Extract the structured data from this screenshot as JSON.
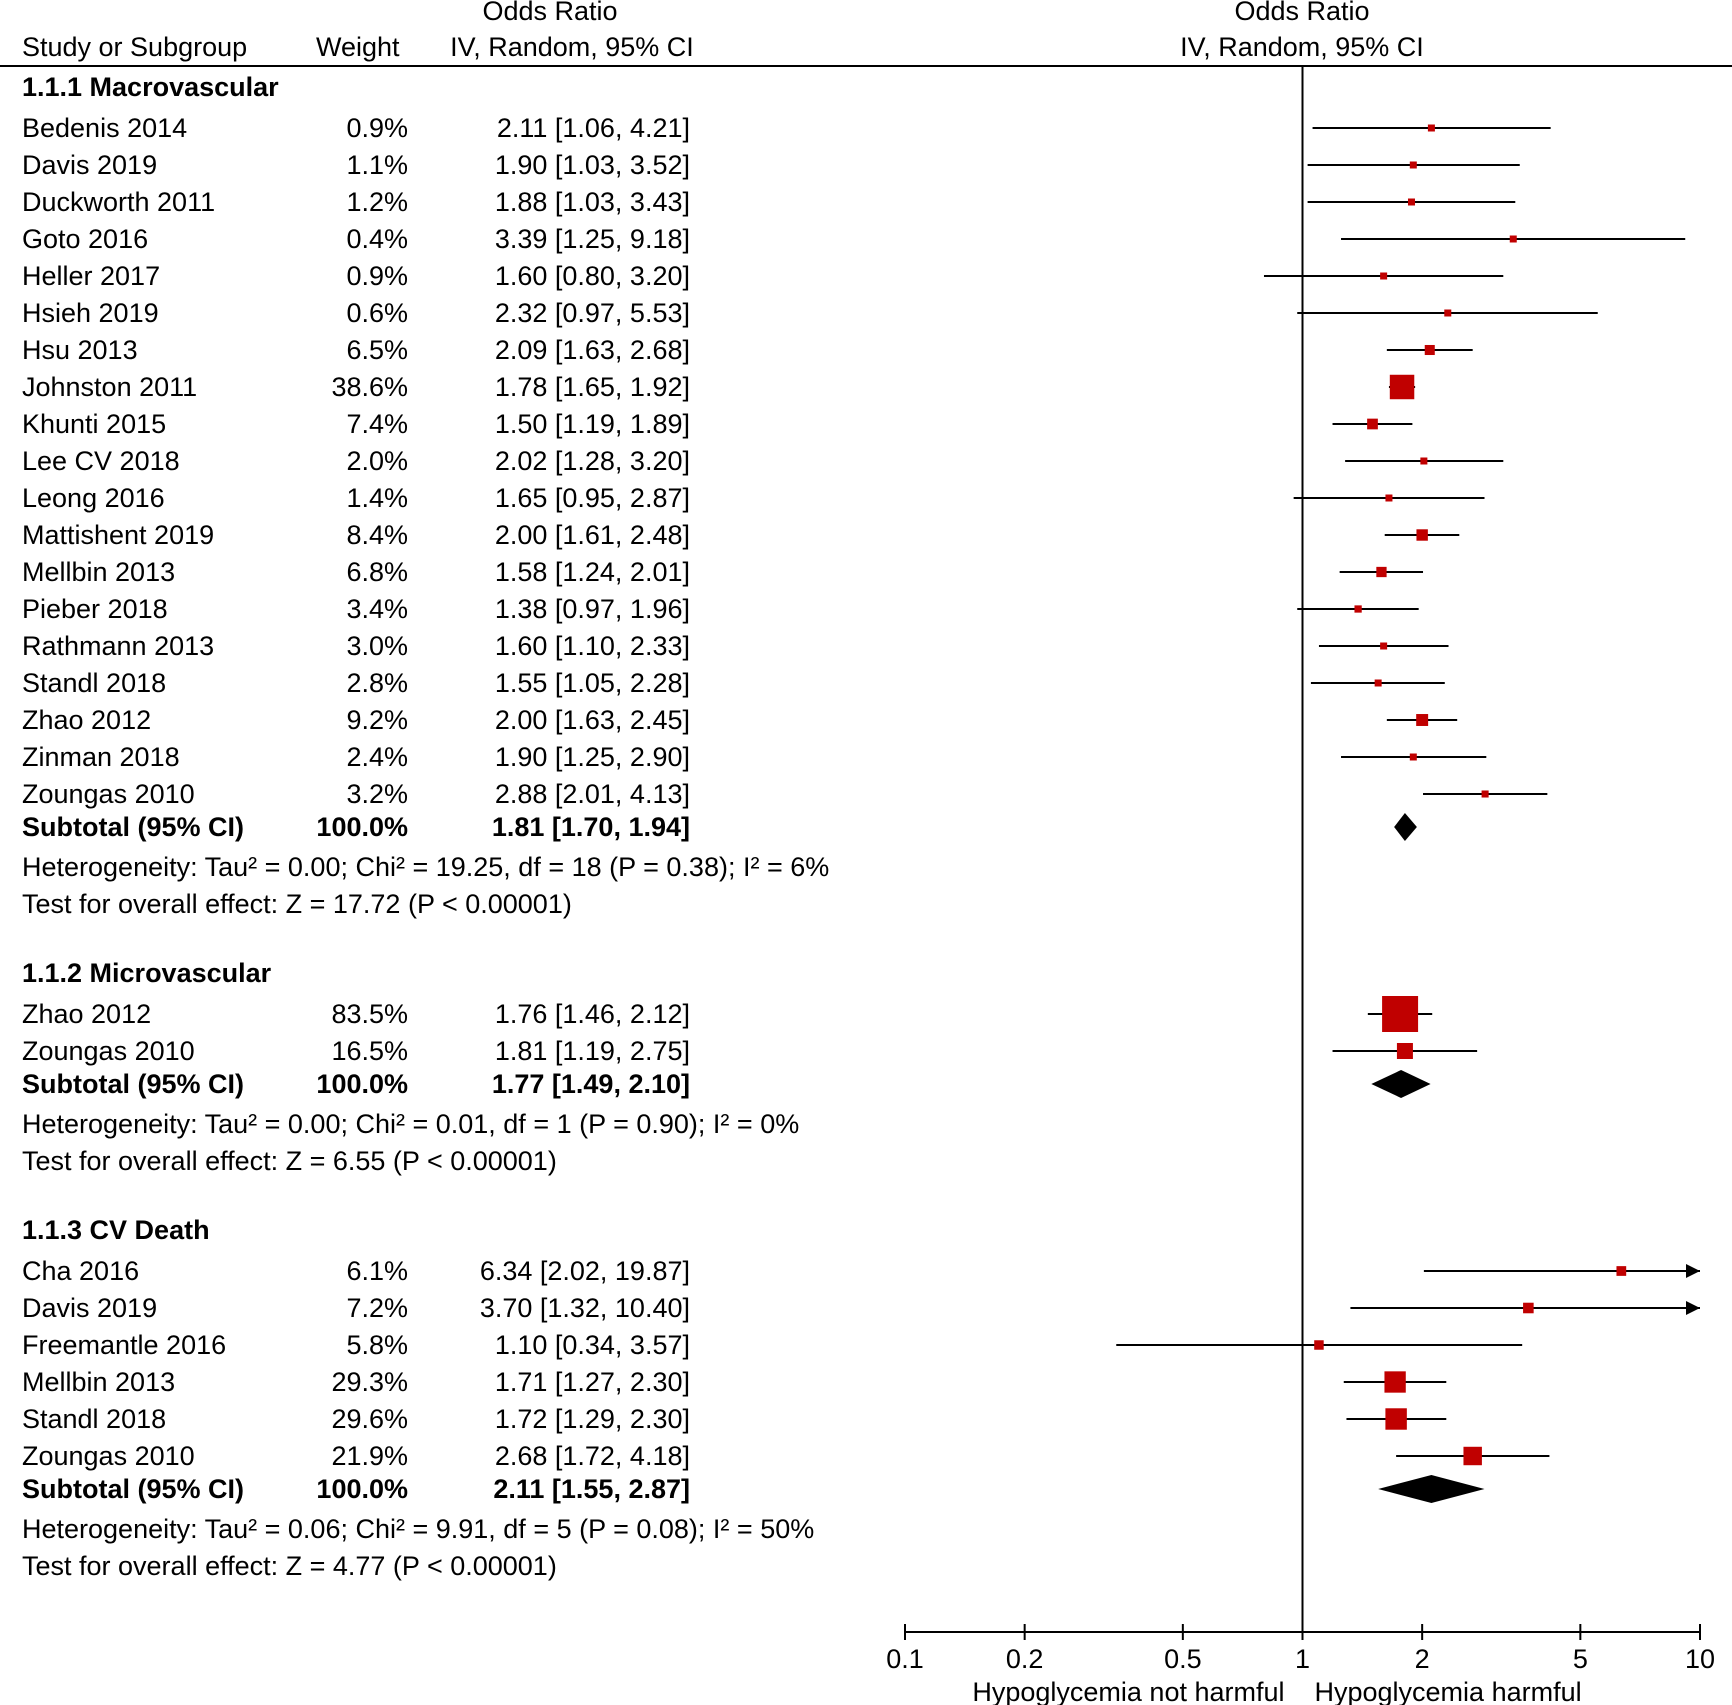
{
  "header": {
    "col_study": "Study or Subgroup",
    "col_weight": "Weight",
    "col_or_title": "Odds Ratio",
    "col_or_method": "IV, Random, 95% CI",
    "plot_title": "Odds Ratio",
    "plot_method": "IV, Random, 95% CI"
  },
  "chart_data": {
    "type": "forest",
    "x_scale": "log",
    "xlim": [
      0.1,
      10
    ],
    "x_ticks": [
      0.1,
      0.2,
      0.5,
      1,
      2,
      5,
      10
    ],
    "x_tick_labels": [
      "0.1",
      "0.2",
      "0.5",
      "1",
      "2",
      "5",
      "10"
    ],
    "null_value": 1,
    "label_left": "Hypoglycemia not harmful",
    "label_right": "Hypoglycemia harmful",
    "subgroups": [
      {
        "title": "1.1.1 Macrovascular",
        "studies": [
          {
            "study": "Bedenis 2014",
            "weight": "0.9%",
            "ci_text": "2.11 [1.06, 4.21]",
            "or": 2.11,
            "lo": 1.06,
            "hi": 4.21,
            "w": 0.9
          },
          {
            "study": "Davis 2019",
            "weight": "1.1%",
            "ci_text": "1.90 [1.03, 3.52]",
            "or": 1.9,
            "lo": 1.03,
            "hi": 3.52,
            "w": 1.1
          },
          {
            "study": "Duckworth 2011",
            "weight": "1.2%",
            "ci_text": "1.88 [1.03, 3.43]",
            "or": 1.88,
            "lo": 1.03,
            "hi": 3.43,
            "w": 1.2
          },
          {
            "study": "Goto 2016",
            "weight": "0.4%",
            "ci_text": "3.39 [1.25, 9.18]",
            "or": 3.39,
            "lo": 1.25,
            "hi": 9.18,
            "w": 0.4
          },
          {
            "study": "Heller 2017",
            "weight": "0.9%",
            "ci_text": "1.60 [0.80, 3.20]",
            "or": 1.6,
            "lo": 0.8,
            "hi": 3.2,
            "w": 0.9
          },
          {
            "study": "Hsieh 2019",
            "weight": "0.6%",
            "ci_text": "2.32 [0.97, 5.53]",
            "or": 2.32,
            "lo": 0.97,
            "hi": 5.53,
            "w": 0.6
          },
          {
            "study": "Hsu 2013",
            "weight": "6.5%",
            "ci_text": "2.09 [1.63, 2.68]",
            "or": 2.09,
            "lo": 1.63,
            "hi": 2.68,
            "w": 6.5
          },
          {
            "study": "Johnston 2011",
            "weight": "38.6%",
            "ci_text": "1.78 [1.65, 1.92]",
            "or": 1.78,
            "lo": 1.65,
            "hi": 1.92,
            "w": 38.6
          },
          {
            "study": "Khunti 2015",
            "weight": "7.4%",
            "ci_text": "1.50 [1.19, 1.89]",
            "or": 1.5,
            "lo": 1.19,
            "hi": 1.89,
            "w": 7.4
          },
          {
            "study": "Lee CV 2018",
            "weight": "2.0%",
            "ci_text": "2.02 [1.28, 3.20]",
            "or": 2.02,
            "lo": 1.28,
            "hi": 3.2,
            "w": 2.0
          },
          {
            "study": "Leong 2016",
            "weight": "1.4%",
            "ci_text": "1.65 [0.95, 2.87]",
            "or": 1.65,
            "lo": 0.95,
            "hi": 2.87,
            "w": 1.4
          },
          {
            "study": "Mattishent 2019",
            "weight": "8.4%",
            "ci_text": "2.00 [1.61, 2.48]",
            "or": 2.0,
            "lo": 1.61,
            "hi": 2.48,
            "w": 8.4
          },
          {
            "study": "Mellbin 2013",
            "weight": "6.8%",
            "ci_text": "1.58 [1.24, 2.01]",
            "or": 1.58,
            "lo": 1.24,
            "hi": 2.01,
            "w": 6.8
          },
          {
            "study": "Pieber 2018",
            "weight": "3.4%",
            "ci_text": "1.38 [0.97, 1.96]",
            "or": 1.38,
            "lo": 0.97,
            "hi": 1.96,
            "w": 3.4
          },
          {
            "study": "Rathmann 2013",
            "weight": "3.0%",
            "ci_text": "1.60 [1.10, 2.33]",
            "or": 1.6,
            "lo": 1.1,
            "hi": 2.33,
            "w": 3.0
          },
          {
            "study": "Standl 2018",
            "weight": "2.8%",
            "ci_text": "1.55 [1.05, 2.28]",
            "or": 1.55,
            "lo": 1.05,
            "hi": 2.28,
            "w": 2.8
          },
          {
            "study": "Zhao 2012",
            "weight": "9.2%",
            "ci_text": "2.00 [1.63, 2.45]",
            "or": 2.0,
            "lo": 1.63,
            "hi": 2.45,
            "w": 9.2
          },
          {
            "study": "Zinman 2018",
            "weight": "2.4%",
            "ci_text": "1.90 [1.25, 2.90]",
            "or": 1.9,
            "lo": 1.25,
            "hi": 2.9,
            "w": 2.4
          },
          {
            "study": "Zoungas 2010",
            "weight": "3.2%",
            "ci_text": "2.88 [2.01, 4.13]",
            "or": 2.88,
            "lo": 2.01,
            "hi": 4.13,
            "w": 3.2
          }
        ],
        "subtotal": {
          "label": "Subtotal (95% CI)",
          "weight": "100.0%",
          "ci_text": "1.81 [1.70, 1.94]",
          "or": 1.81,
          "lo": 1.7,
          "hi": 1.94
        },
        "heterogeneity": "Heterogeneity: Tau² = 0.00; Chi² = 19.25, df = 18 (P = 0.38); I² = 6%",
        "overall": "Test for overall effect: Z = 17.72 (P < 0.00001)"
      },
      {
        "title": "1.1.2 Microvascular",
        "studies": [
          {
            "study": "Zhao 2012",
            "weight": "83.5%",
            "ci_text": "1.76 [1.46, 2.12]",
            "or": 1.76,
            "lo": 1.46,
            "hi": 2.12,
            "w": 83.5
          },
          {
            "study": "Zoungas 2010",
            "weight": "16.5%",
            "ci_text": "1.81 [1.19, 2.75]",
            "or": 1.81,
            "lo": 1.19,
            "hi": 2.75,
            "w": 16.5
          }
        ],
        "subtotal": {
          "label": "Subtotal (95% CI)",
          "weight": "100.0%",
          "ci_text": "1.77 [1.49, 2.10]",
          "or": 1.77,
          "lo": 1.49,
          "hi": 2.1
        },
        "heterogeneity": "Heterogeneity: Tau² = 0.00; Chi² = 0.01, df = 1 (P = 0.90); I² = 0%",
        "overall": "Test for overall effect: Z = 6.55 (P < 0.00001)"
      },
      {
        "title": "1.1.3 CV Death",
        "studies": [
          {
            "study": "Cha 2016",
            "weight": "6.1%",
            "ci_text": "6.34 [2.02, 19.87]",
            "or": 6.34,
            "lo": 2.02,
            "hi": 19.87,
            "w": 6.1
          },
          {
            "study": "Davis 2019",
            "weight": "7.2%",
            "ci_text": "3.70 [1.32, 10.40]",
            "or": 3.7,
            "lo": 1.32,
            "hi": 10.4,
            "w": 7.2
          },
          {
            "study": "Freemantle 2016",
            "weight": "5.8%",
            "ci_text": "1.10 [0.34, 3.57]",
            "or": 1.1,
            "lo": 0.34,
            "hi": 3.57,
            "w": 5.8
          },
          {
            "study": "Mellbin 2013",
            "weight": "29.3%",
            "ci_text": "1.71 [1.27, 2.30]",
            "or": 1.71,
            "lo": 1.27,
            "hi": 2.3,
            "w": 29.3
          },
          {
            "study": "Standl 2018",
            "weight": "29.6%",
            "ci_text": "1.72 [1.29, 2.30]",
            "or": 1.72,
            "lo": 1.29,
            "hi": 2.3,
            "w": 29.6
          },
          {
            "study": "Zoungas 2010",
            "weight": "21.9%",
            "ci_text": "2.68 [1.72, 4.18]",
            "or": 2.68,
            "lo": 1.72,
            "hi": 4.18,
            "w": 21.9
          }
        ],
        "subtotal": {
          "label": "Subtotal (95% CI)",
          "weight": "100.0%",
          "ci_text": "2.11 [1.55, 2.87]",
          "or": 2.11,
          "lo": 1.55,
          "hi": 2.87
        },
        "heterogeneity": "Heterogeneity: Tau² = 0.06; Chi² = 9.91, df = 5 (P = 0.08); I² = 50%",
        "overall": "Test for overall effect: Z = 4.77 (P < 0.00001)"
      }
    ]
  },
  "colors": {
    "marker": "#c00000",
    "line": "#000000",
    "diamond": "#000000"
  }
}
